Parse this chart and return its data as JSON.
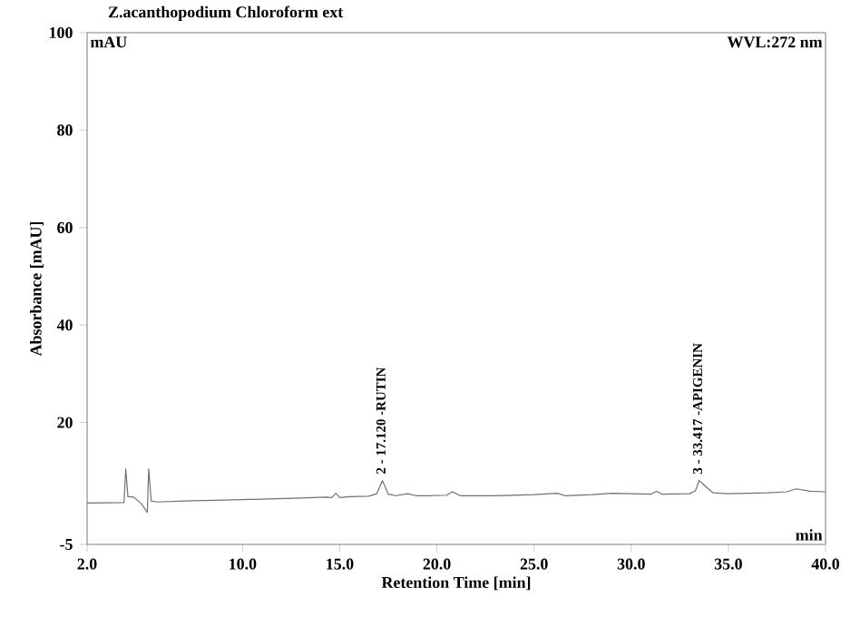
{
  "chart_data": {
    "type": "line",
    "title": "Z.acanthopodium Chloroform ext",
    "xlabel": "Retention Time [min]",
    "ylabel": "Absorbance [mAU]",
    "annotations": [
      "mAU",
      "WVL:272 nm",
      "min",
      {
        "text": "2 - 17.120 -RUTIN",
        "x": 17.12,
        "y": 8.1
      },
      {
        "text": "3 - 33.417 -APIGENIN",
        "x": 33.417,
        "y": 8.1
      }
    ],
    "series": [
      {
        "color": "#707070",
        "x": [
          2.0,
          3.9,
          3.99,
          4.1,
          4.4,
          4.8,
          5.1,
          5.17,
          5.3,
          5.6,
          7.0,
          9.0,
          11.0,
          13.0,
          14.3,
          14.6,
          14.8,
          15.0,
          15.5,
          16.5,
          16.9,
          17.2,
          17.5,
          17.9,
          18.5,
          18.9,
          19.5,
          20.5,
          20.8,
          21.2,
          23.0,
          25.0,
          26.2,
          26.6,
          28.0,
          29.0,
          31.0,
          31.3,
          31.6,
          33.0,
          33.3,
          33.5,
          33.8,
          34.2,
          35.0,
          37.0,
          38.0,
          38.5,
          39.2,
          40.0
        ],
        "values": [
          3.5,
          3.6,
          10.5,
          4.8,
          4.7,
          3.3,
          1.6,
          10.5,
          3.9,
          3.7,
          3.9,
          4.1,
          4.3,
          4.5,
          4.7,
          4.6,
          5.5,
          4.6,
          4.8,
          4.9,
          5.4,
          8.1,
          5.3,
          5.0,
          5.4,
          5.0,
          5.0,
          5.1,
          5.8,
          5.0,
          5.0,
          5.2,
          5.5,
          5.0,
          5.2,
          5.5,
          5.3,
          5.9,
          5.3,
          5.4,
          6.0,
          8.1,
          7.0,
          5.6,
          5.4,
          5.6,
          5.8,
          6.4,
          5.9,
          5.8
        ]
      }
    ],
    "xlim": [
      2.0,
      40.0
    ],
    "ylim": [
      -5,
      100
    ],
    "xticks": [
      {
        "value": 2,
        "label": "2.0"
      },
      {
        "value": 10,
        "label": "10.0"
      },
      {
        "value": 15,
        "label": "15.0"
      },
      {
        "value": 20,
        "label": "20.0"
      },
      {
        "value": 25,
        "label": "25.0"
      },
      {
        "value": 30,
        "label": "30.0"
      },
      {
        "value": 35,
        "label": "35.0"
      },
      {
        "value": 40,
        "label": "40.0"
      }
    ],
    "yticks": [
      -5,
      20,
      40,
      60,
      80,
      100
    ],
    "grid": false,
    "marker": "none",
    "line_style": "solid"
  }
}
